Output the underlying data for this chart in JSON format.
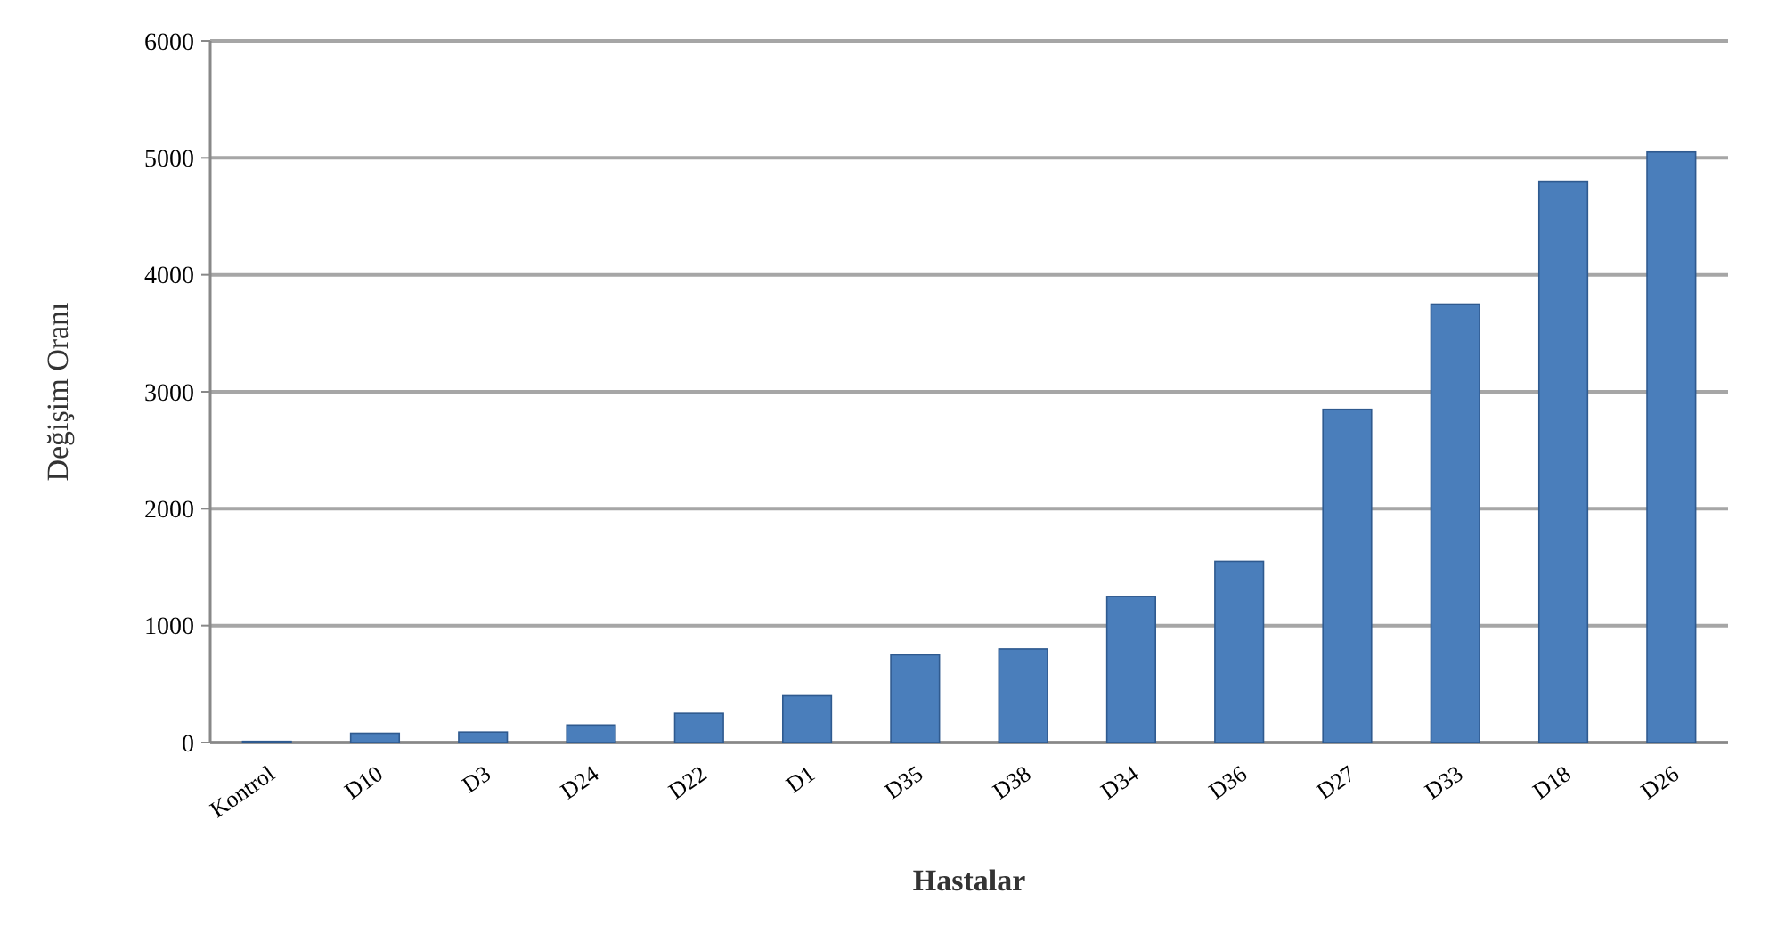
{
  "chart_data": {
    "type": "bar",
    "xlabel": "Hastalar",
    "ylabel": "Değişim Oranı",
    "categories": [
      "Kontrol",
      "D10",
      "D3",
      "D24",
      "D22",
      "D1",
      "D35",
      "D38",
      "D34",
      "D36",
      "D27",
      "D33",
      "D18",
      "D26"
    ],
    "values": [
      10,
      80,
      90,
      150,
      250,
      400,
      750,
      800,
      1250,
      1550,
      2850,
      3750,
      4800,
      5050
    ],
    "color": "#4a7ebb",
    "ylim": [
      0,
      6000
    ],
    "yticks": [
      0,
      1000,
      2000,
      3000,
      4000,
      5000,
      6000
    ],
    "grid": "y"
  }
}
